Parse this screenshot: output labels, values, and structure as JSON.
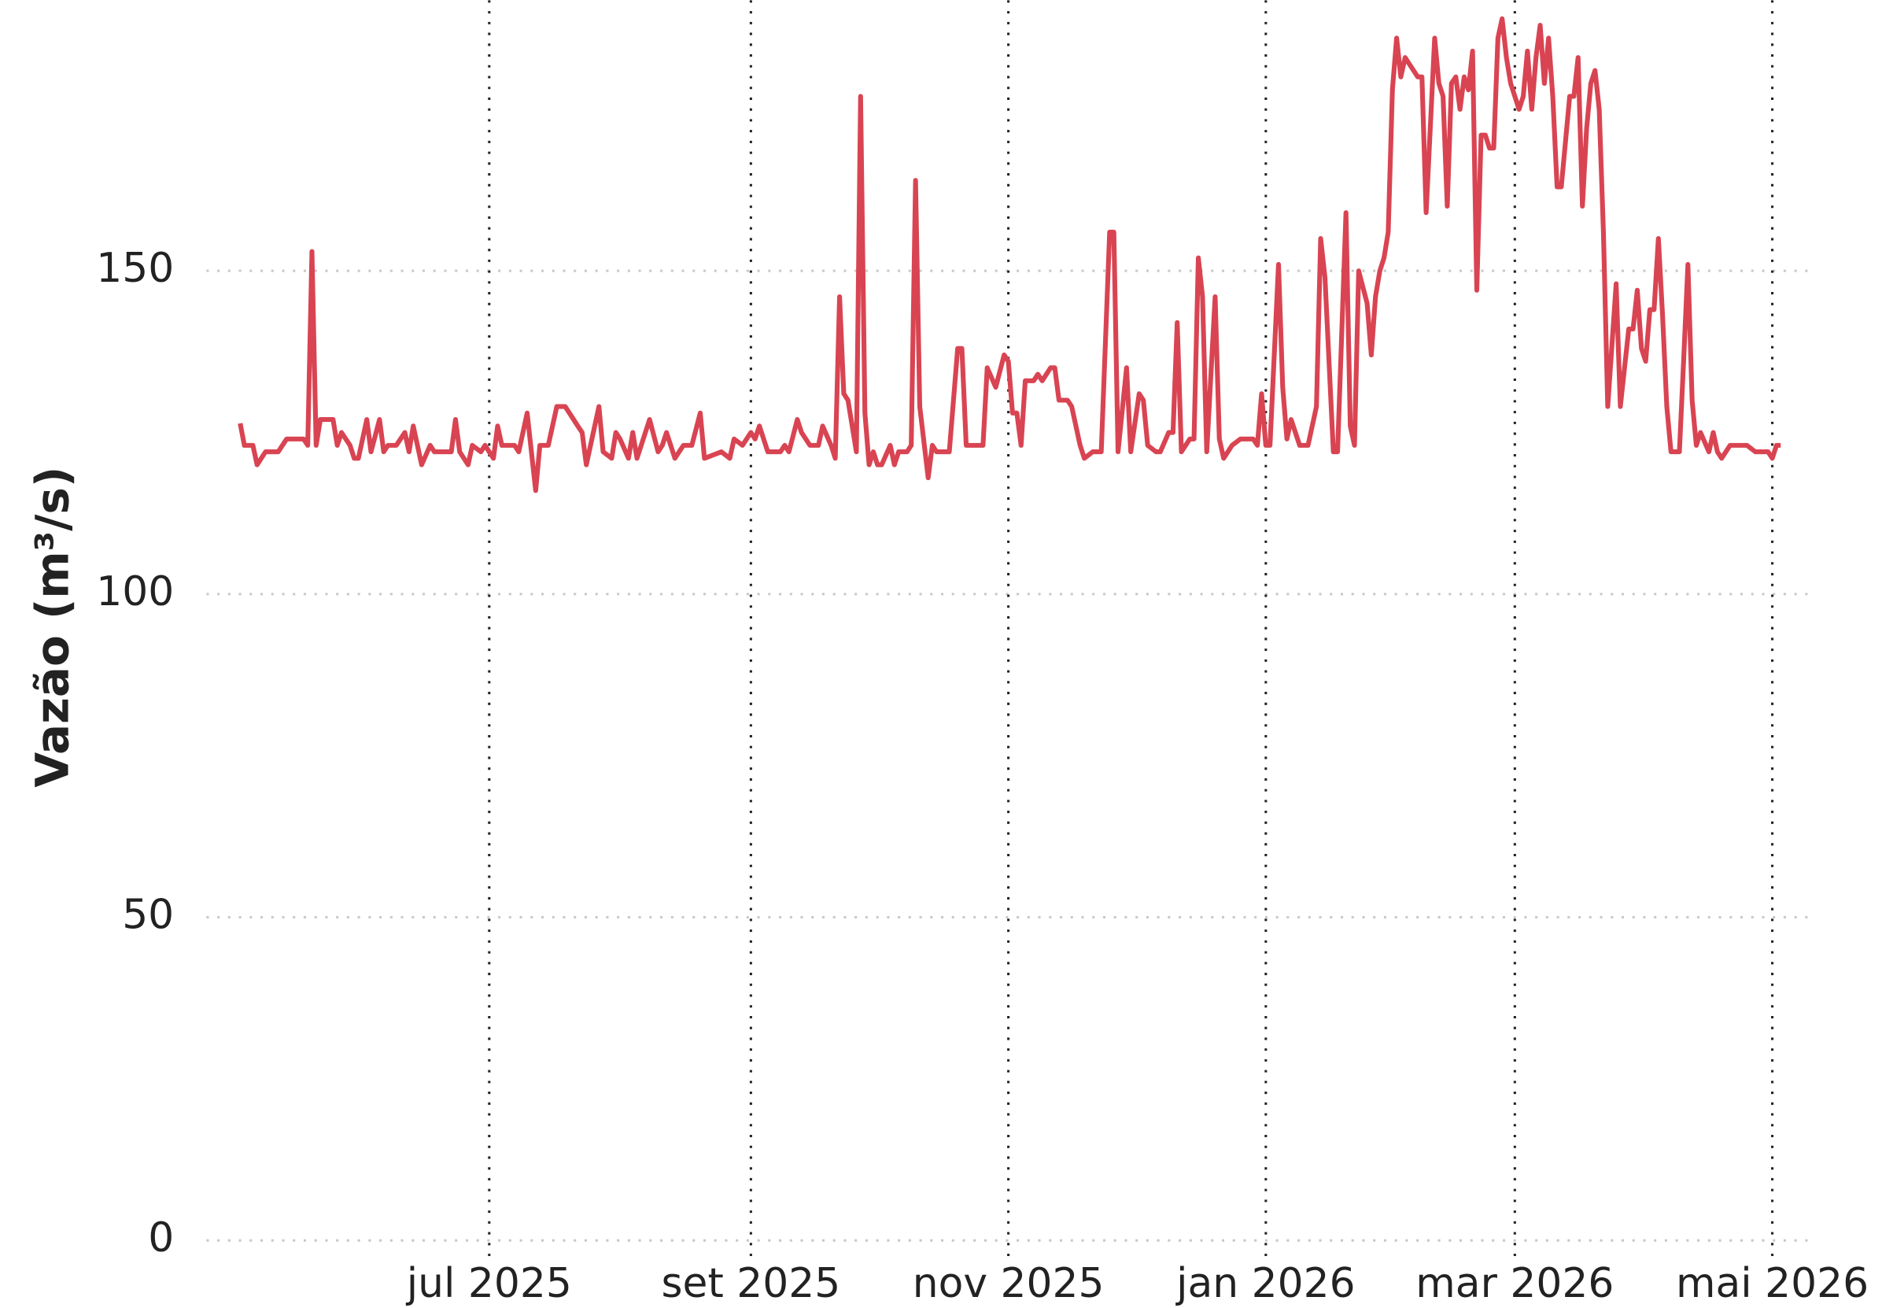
{
  "chart_data": {
    "type": "line",
    "y_label": "Vazão (m³/s)",
    "color": "#d94452",
    "grid": true,
    "xlim": [
      -67,
      313.5
    ],
    "ylim": [
      0,
      190
    ],
    "yticks": [
      0,
      50,
      100,
      150
    ],
    "xticks": [
      {
        "value": 0,
        "label": "jul 2025"
      },
      {
        "value": 62,
        "label": "set 2025"
      },
      {
        "value": 123,
        "label": "nov 2025"
      },
      {
        "value": 184,
        "label": "jan 2026"
      },
      {
        "value": 243,
        "label": "mar 2026"
      },
      {
        "value": 304,
        "label": "mai 2026"
      }
    ],
    "x": [
      -59,
      -58,
      -56,
      -55,
      -53,
      -50,
      -48,
      -44,
      -43,
      -42,
      -41,
      -40,
      -37,
      -36,
      -35,
      -33,
      -32,
      -31,
      -29,
      -28,
      -26,
      -25,
      -24,
      -22,
      -20,
      -19,
      -18,
      -16,
      -14,
      -13,
      -12,
      -9,
      -8,
      -7,
      -5,
      -4,
      -2,
      -1,
      1,
      2,
      3,
      6,
      7,
      9,
      11,
      12,
      14,
      16,
      18,
      19,
      21,
      22,
      23,
      26,
      27,
      29,
      30,
      31,
      33,
      34,
      35,
      37,
      38,
      40,
      41,
      42,
      44,
      46,
      48,
      50,
      51,
      55,
      57,
      58,
      60,
      62,
      63,
      64,
      66,
      69,
      70,
      71,
      73,
      74,
      76,
      78,
      79,
      81,
      82,
      83,
      84,
      85,
      87,
      88,
      89,
      90,
      91,
      92,
      93,
      95,
      96,
      97,
      99,
      100,
      101,
      102,
      104,
      105,
      106,
      109,
      111,
      112,
      113,
      117,
      118,
      120,
      122,
      123,
      124,
      125,
      126,
      127,
      129,
      130,
      131,
      133,
      134,
      135,
      137,
      138,
      140,
      141,
      143,
      145,
      147,
      148,
      149,
      151,
      152,
      154,
      155,
      156,
      158,
      159,
      161,
      162,
      163,
      164,
      166,
      167,
      168,
      169,
      170,
      172,
      173,
      174,
      176,
      178,
      181,
      182,
      183,
      184,
      185,
      187,
      188,
      189,
      190,
      192,
      194,
      196,
      197,
      198,
      200,
      201,
      203,
      204,
      205,
      206,
      208,
      209,
      210,
      211,
      212,
      213,
      214,
      215,
      216,
      217,
      218,
      220,
      221,
      222,
      224,
      225,
      226,
      227,
      228,
      229,
      230,
      231,
      232,
      233,
      234,
      235,
      236,
      237,
      238,
      239,
      240,
      241,
      242,
      244,
      245,
      246,
      247,
      248,
      249,
      250,
      251,
      252,
      253,
      254,
      256,
      257,
      258,
      259,
      260,
      261,
      262,
      263,
      264,
      265,
      267,
      268,
      270,
      271,
      272,
      273,
      274,
      275,
      276,
      277,
      278,
      279,
      280,
      282,
      283,
      284,
      285,
      286,
      287,
      289,
      290,
      291,
      292,
      294,
      296,
      298,
      300,
      303,
      304,
      305,
      306
    ],
    "values": [
      126.4,
      123,
      123,
      120,
      122,
      122,
      124,
      124,
      123,
      153,
      123,
      127,
      127,
      123,
      125,
      123,
      121,
      121,
      127,
      122,
      127,
      122,
      123,
      123,
      125,
      122,
      126,
      120,
      123,
      122,
      122,
      122,
      127,
      122,
      120,
      123,
      122,
      123,
      121,
      126,
      123,
      123,
      122,
      128,
      116,
      123,
      123,
      129,
      129,
      128,
      126,
      125,
      120,
      129,
      122,
      121,
      125,
      124,
      121,
      125,
      121,
      125,
      127,
      122,
      123,
      125,
      121,
      123,
      123,
      128,
      121,
      122,
      121,
      124,
      123,
      125,
      124,
      126,
      122,
      122,
      123,
      122,
      127,
      125,
      123,
      123,
      126,
      123,
      121,
      146,
      131,
      130,
      122,
      177,
      128,
      120,
      122,
      120,
      120,
      123,
      120,
      122,
      122,
      123,
      164,
      129,
      118,
      123,
      122,
      122,
      138,
      138,
      123,
      123,
      135,
      132,
      137,
      136,
      128,
      128,
      123,
      133,
      133,
      134,
      133,
      135,
      135,
      130,
      130,
      129,
      123,
      121,
      122,
      122,
      156,
      156,
      122,
      135,
      122,
      131,
      130,
      123,
      122,
      122,
      125,
      125,
      142,
      122,
      124,
      124,
      152,
      146,
      122,
      146,
      124,
      121,
      123,
      124,
      124,
      123,
      131,
      123,
      123,
      151,
      132,
      124,
      127,
      123,
      123,
      129,
      155,
      149,
      122,
      122,
      159,
      126,
      123,
      150,
      145,
      137,
      146,
      150,
      152,
      156,
      178,
      186,
      180,
      183,
      182,
      180,
      180,
      159,
      186,
      179,
      177,
      160,
      179,
      180,
      175,
      180,
      178,
      184,
      147,
      171,
      171,
      169,
      169,
      186,
      189,
      183,
      179,
      175,
      177,
      184,
      175,
      183,
      188,
      179,
      186,
      177,
      163,
      163,
      177,
      177,
      183,
      160,
      172,
      179,
      181,
      175,
      156,
      129,
      148,
      129,
      141,
      141,
      147,
      138,
      136,
      144,
      144,
      155,
      143,
      129,
      122,
      122,
      136,
      151,
      130,
      123,
      125,
      122,
      125,
      122,
      121,
      123,
      123,
      123,
      122,
      122,
      121,
      123,
      123
    ]
  }
}
